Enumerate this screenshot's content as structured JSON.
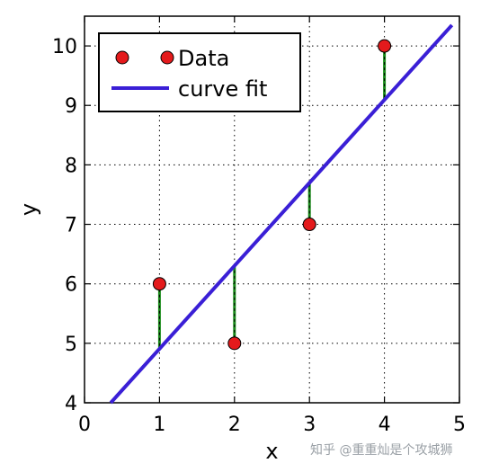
{
  "chart_data": {
    "type": "scatter",
    "title": "",
    "xlabel": "x",
    "ylabel": "y",
    "xlim": [
      0,
      5
    ],
    "ylim": [
      4,
      10.5
    ],
    "xticks": [
      0,
      1,
      2,
      3,
      4,
      5
    ],
    "yticks": [
      4,
      5,
      6,
      7,
      8,
      9,
      10
    ],
    "grid": true,
    "legend_position": "top-left",
    "series": [
      {
        "name": "Data",
        "kind": "points",
        "x": [
          1,
          2,
          3,
          4
        ],
        "y": [
          6,
          5,
          7,
          10
        ],
        "color": "#e41a1c"
      },
      {
        "name": "curve fit",
        "kind": "line",
        "x": [
          0.35,
          4.9
        ],
        "y": [
          4.0,
          10.35
        ],
        "color": "#3a1fd6"
      }
    ],
    "residuals": {
      "color": "#1a8a1a",
      "x": [
        1,
        2,
        3,
        4
      ],
      "from_y": [
        6,
        5,
        7,
        10
      ],
      "to_y": [
        4.9,
        6.3,
        7.7,
        9.1
      ]
    }
  },
  "watermark": "知乎 @重重灿是个攻城狮"
}
